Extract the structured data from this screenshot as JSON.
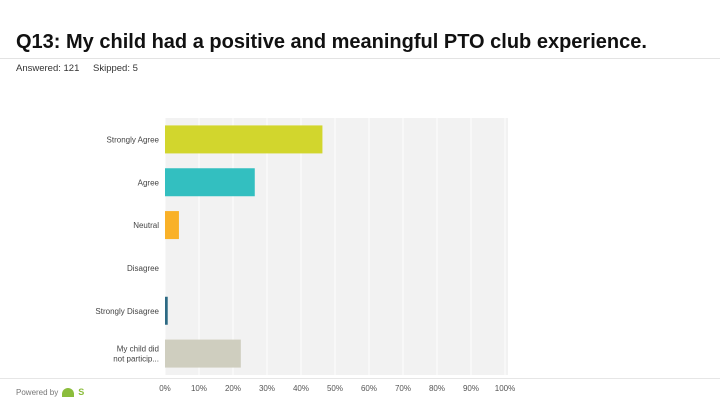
{
  "header": {
    "title": "Q13: My child had a positive and meaningful PTO club experience.",
    "answered": "Answered: 121",
    "skipped": "Skipped: 5"
  },
  "footer": {
    "powered_by": "Powered by",
    "logo_text": "S",
    "logo_icon": "survey-logo-icon"
  },
  "colors": {
    "plot_background": "#f2f2f2",
    "gridline": "#ffffff"
  },
  "chart_data": {
    "type": "bar",
    "orientation": "horizontal",
    "categories": [
      [
        "Strongly Agree"
      ],
      [
        "Agree"
      ],
      [
        "Neutral"
      ],
      [
        "Disagree"
      ],
      [
        "Strongly Disagree"
      ],
      [
        "My child did",
        "not particip..."
      ]
    ],
    "values": [
      46.3,
      26.4,
      4.1,
      0,
      0.8,
      22.3
    ],
    "colors": [
      "#d2d62d",
      "#33bfc0",
      "#f9b128",
      "#a3a3a3",
      "#2d6a84",
      "#cfcebf"
    ],
    "xticks": [
      "0%",
      "10%",
      "20%",
      "30%",
      "40%",
      "50%",
      "60%",
      "70%",
      "80%",
      "90%",
      "100%"
    ],
    "xlim": [
      0,
      100
    ],
    "grid": true,
    "legend": "none"
  }
}
